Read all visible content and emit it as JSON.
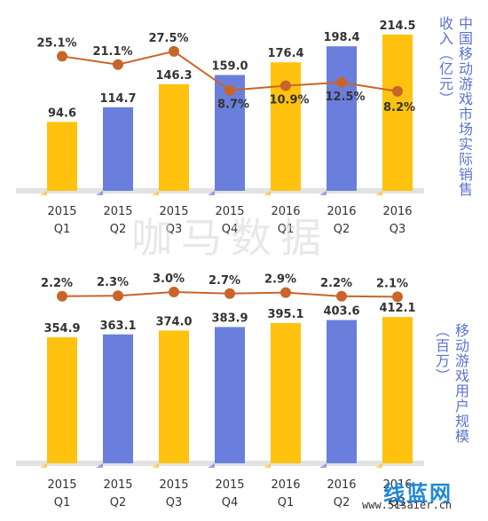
{
  "watermarks": {
    "center": "咖马数据",
    "corner_brand": "线蓝网",
    "corner_url": "www.51saier.cn"
  },
  "colors": {
    "bar_a": "#ffc20e",
    "bar_b": "#6a7fdc",
    "line": "#c8652a",
    "text": "#333333",
    "title": "#5b73cf"
  },
  "chart_data": [
    {
      "type": "bar",
      "title": "中国移动游戏市场实际销售收入（亿元）",
      "categories": [
        "2015 Q1",
        "2015 Q2",
        "2015 Q3",
        "2015 Q4",
        "2016 Q1",
        "2016 Q2",
        "2016 Q3"
      ],
      "category_years": [
        "2015",
        "2015",
        "2015",
        "2015",
        "2016",
        "2016",
        "2016"
      ],
      "category_quarters": [
        "Q1",
        "Q2",
        "Q3",
        "Q4",
        "Q1",
        "Q2",
        "Q3"
      ],
      "bar_colors": [
        "#ffc20e",
        "#6a7fdc",
        "#ffc20e",
        "#6a7fdc",
        "#ffc20e",
        "#6a7fdc",
        "#ffc20e"
      ],
      "values": [
        94.6,
        114.7,
        146.3,
        159.0,
        176.4,
        198.4,
        214.5
      ],
      "value_labels": [
        "94.6",
        "114.7",
        "146.3",
        "159.0",
        "176.4",
        "198.4",
        "214.5"
      ],
      "growth": [
        25.1,
        21.1,
        27.5,
        8.7,
        10.9,
        12.5,
        8.2
      ],
      "growth_labels": [
        "25.1%",
        "21.1%",
        "27.5%",
        "8.7%",
        "10.9%",
        "12.5%",
        "8.2%"
      ],
      "ylim": [
        0,
        240
      ],
      "growth_ylim": [
        0,
        36
      ],
      "grid": false
    },
    {
      "type": "bar",
      "title": "移动游戏用户规模（百万）",
      "categories": [
        "2015 Q1",
        "2015 Q2",
        "2015 Q3",
        "2015 Q4",
        "2016 Q1",
        "2016 Q2",
        "2016 Q3"
      ],
      "category_years": [
        "2015",
        "2015",
        "2015",
        "2015",
        "2016",
        "2016",
        "2016"
      ],
      "category_quarters": [
        "Q1",
        "Q2",
        "Q3",
        "Q4",
        "Q1",
        "Q2",
        "Q3"
      ],
      "bar_colors": [
        "#ffc20e",
        "#6a7fdc",
        "#ffc20e",
        "#6a7fdc",
        "#ffc20e",
        "#6a7fdc",
        "#ffc20e"
      ],
      "values": [
        354.9,
        363.1,
        374.0,
        383.9,
        395.1,
        403.6,
        412.1
      ],
      "value_labels": [
        "354.9",
        "363.1",
        "374.0",
        "383.9",
        "395.1",
        "403.6",
        "412.1"
      ],
      "growth": [
        2.2,
        2.3,
        3.0,
        2.7,
        2.9,
        2.2,
        2.1
      ],
      "growth_labels": [
        "2.2%",
        "2.3%",
        "3.0%",
        "2.7%",
        "2.9%",
        "2.2%",
        "2.1%"
      ],
      "ylim": [
        0,
        430
      ],
      "growth_ylim": [
        -2.5,
        4.5
      ],
      "grid": false
    }
  ]
}
